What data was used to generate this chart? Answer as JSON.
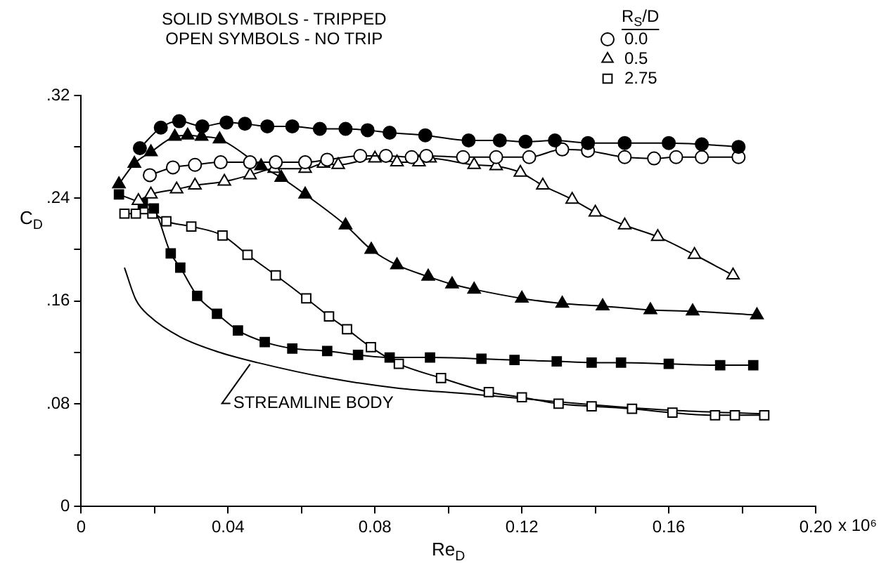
{
  "chart_data": {
    "type": "line",
    "xlabel": "Re$_{D}$",
    "ylabel": "C$_{D}$",
    "legend_title": "R$_{S}$/D",
    "annotations": [
      "SOLID SYMBOLS - TRIPPED",
      "OPEN SYMBOLS - NO TRIP",
      "x 10⁶",
      {
        "text": "STREAMLINE BODY",
        "x": 0.046,
        "y": 0.113
      }
    ],
    "xlim": [
      0,
      0.2
    ],
    "ylim": [
      0,
      0.32
    ],
    "xticks": [
      {
        "value": 0,
        "label": "0"
      },
      {
        "value": 0.02,
        "label": null
      },
      {
        "value": 0.04,
        "label": "0.04"
      },
      {
        "value": 0.06,
        "label": null
      },
      {
        "value": 0.08,
        "label": "0.08"
      },
      {
        "value": 0.1,
        "label": null
      },
      {
        "value": 0.12,
        "label": "0.12"
      },
      {
        "value": 0.14,
        "label": null
      },
      {
        "value": 0.16,
        "label": "0.16"
      },
      {
        "value": 0.18,
        "label": null
      },
      {
        "value": 0.2,
        "label": "0.20"
      }
    ],
    "yticks": [
      {
        "value": 0,
        "label": "0"
      },
      {
        "value": 0.04,
        "label": null
      },
      {
        "value": 0.08,
        "label": ".08"
      },
      {
        "value": 0.12,
        "label": null
      },
      {
        "value": 0.16,
        "label": ".16"
      },
      {
        "value": 0.2,
        "label": null
      },
      {
        "value": 0.24,
        "label": ".24"
      },
      {
        "value": 0.28,
        "label": null
      },
      {
        "value": 0.32,
        "label": ".32"
      }
    ],
    "grid": false,
    "legend": "top right",
    "series": [
      {
        "color": "#000000",
        "marker": "circle",
        "x": [
          0.016,
          0.0217,
          0.0267,
          0.033,
          0.0396,
          0.0446,
          0.0507,
          0.0575,
          0.065,
          0.072,
          0.078,
          0.084,
          0.0937,
          0.1055,
          0.114,
          0.121,
          0.129,
          0.138,
          0.148,
          0.16,
          0.169,
          0.179
        ],
        "values": [
          0.279,
          0.295,
          0.3,
          0.296,
          0.299,
          0.298,
          0.296,
          0.296,
          0.294,
          0.294,
          0.293,
          0.291,
          0.289,
          0.285,
          0.285,
          0.284,
          0.285,
          0.283,
          0.283,
          0.283,
          0.282,
          0.28
        ]
      },
      {
        "name": "0.0",
        "color": "#ffffff",
        "marker": "circle",
        "x": [
          0.0187,
          0.025,
          0.031,
          0.038,
          0.046,
          0.053,
          0.061,
          0.067,
          0.076,
          0.083,
          0.09,
          0.094,
          0.104,
          0.113,
          0.122,
          0.131,
          0.138,
          0.148,
          0.156,
          0.162,
          0.169,
          0.179
        ],
        "values": [
          0.258,
          0.264,
          0.266,
          0.268,
          0.268,
          0.268,
          0.268,
          0.27,
          0.273,
          0.273,
          0.272,
          0.273,
          0.272,
          0.272,
          0.272,
          0.278,
          0.277,
          0.272,
          0.271,
          0.272,
          0.272,
          0.272
        ]
      },
      {
        "color": "#000000",
        "marker": "triangle",
        "x": [
          0.0103,
          0.0145,
          0.019,
          0.0255,
          0.029,
          0.0328,
          0.0377,
          0.049,
          0.0545,
          0.061,
          0.072,
          0.079,
          0.086,
          0.0945,
          0.101,
          0.107,
          0.12,
          0.131,
          0.142,
          0.155,
          0.1665,
          0.184
        ],
        "values": [
          0.251,
          0.267,
          0.276,
          0.288,
          0.289,
          0.288,
          0.286,
          0.265,
          0.256,
          0.243,
          0.219,
          0.2,
          0.188,
          0.179,
          0.173,
          0.169,
          0.162,
          0.158,
          0.156,
          0.153,
          0.152,
          0.149
        ]
      },
      {
        "name": "0.5",
        "color": "#ffffff",
        "marker": "triangle",
        "x": [
          0.0156,
          0.019,
          0.026,
          0.031,
          0.039,
          0.046,
          0.0526,
          0.061,
          0.066,
          0.07,
          0.08,
          0.086,
          0.092,
          0.095,
          0.107,
          0.113,
          0.1196,
          0.1257,
          0.1337,
          0.14,
          0.148,
          0.157,
          0.167,
          0.1775
        ],
        "values": [
          0.238,
          0.243,
          0.247,
          0.25,
          0.253,
          0.258,
          0.263,
          0.263,
          0.267,
          0.266,
          0.271,
          0.268,
          0.268,
          0.271,
          0.266,
          0.265,
          0.26,
          0.25,
          0.239,
          0.229,
          0.219,
          0.21,
          0.196,
          0.18
        ]
      },
      {
        "color": "#000000",
        "marker": "square",
        "x": [
          0.0103,
          0.0168,
          0.0198,
          0.0244,
          0.027,
          0.0316,
          0.037,
          0.0427,
          0.05,
          0.0575,
          0.067,
          0.0754,
          0.084,
          0.095,
          0.109,
          0.118,
          0.1295,
          0.139,
          0.147,
          0.16,
          0.174,
          0.183
        ],
        "values": [
          0.243,
          0.236,
          0.232,
          0.197,
          0.186,
          0.164,
          0.15,
          0.137,
          0.128,
          0.123,
          0.121,
          0.118,
          0.116,
          0.116,
          0.115,
          0.114,
          0.113,
          0.112,
          0.112,
          0.111,
          0.11,
          0.11
        ]
      },
      {
        "name": "2.75",
        "color": "#ffffff",
        "marker": "square",
        "x": [
          0.0118,
          0.0149,
          0.0194,
          0.0232,
          0.03,
          0.0385,
          0.0453,
          0.053,
          0.0613,
          0.0675,
          0.0724,
          0.0789,
          0.0865,
          0.098,
          0.111,
          0.12,
          0.13,
          0.139,
          0.15,
          0.161,
          0.1726,
          0.178,
          0.186
        ],
        "values": [
          0.228,
          0.228,
          0.228,
          0.222,
          0.218,
          0.211,
          0.196,
          0.18,
          0.162,
          0.148,
          0.138,
          0.124,
          0.111,
          0.1,
          0.089,
          0.085,
          0.08,
          0.078,
          0.076,
          0.073,
          0.071,
          0.071,
          0.071
        ]
      },
      {
        "color": "#000000",
        "marker": "none",
        "x": [
          0.0118,
          0.0149,
          0.0187,
          0.027,
          0.0377,
          0.048,
          0.0674,
          0.0865,
          0.104,
          0.12,
          0.14,
          0.16,
          0.186
        ],
        "values": [
          0.186,
          0.161,
          0.148,
          0.132,
          0.12,
          0.112,
          0.1,
          0.092,
          0.088,
          0.084,
          0.079,
          0.075,
          0.072
        ]
      }
    ]
  }
}
